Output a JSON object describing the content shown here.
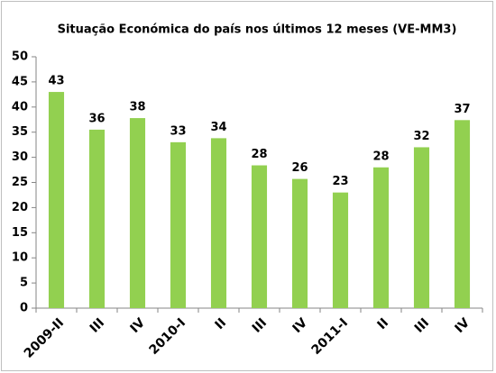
{
  "chart_data": {
    "type": "bar",
    "title": "Situação Económica do país nos últimos 12 meses (VE-MM3)",
    "categories": [
      "2009-II",
      "III",
      "IV",
      "2010-I",
      "II",
      "III",
      "IV",
      "2011-I",
      "II",
      "III",
      "IV"
    ],
    "values": [
      43,
      35.5,
      37.8,
      33,
      33.8,
      28.4,
      25.7,
      23,
      28,
      32,
      37.4
    ],
    "value_labels": [
      "43",
      "36",
      "38",
      "33",
      "34",
      "28",
      "26",
      "23",
      "28",
      "32",
      "37"
    ],
    "color": "#92d050",
    "ylim": [
      0,
      50
    ],
    "yticks": [
      0,
      5,
      10,
      15,
      20,
      25,
      30,
      35,
      40,
      45,
      50
    ],
    "grid": false
  }
}
